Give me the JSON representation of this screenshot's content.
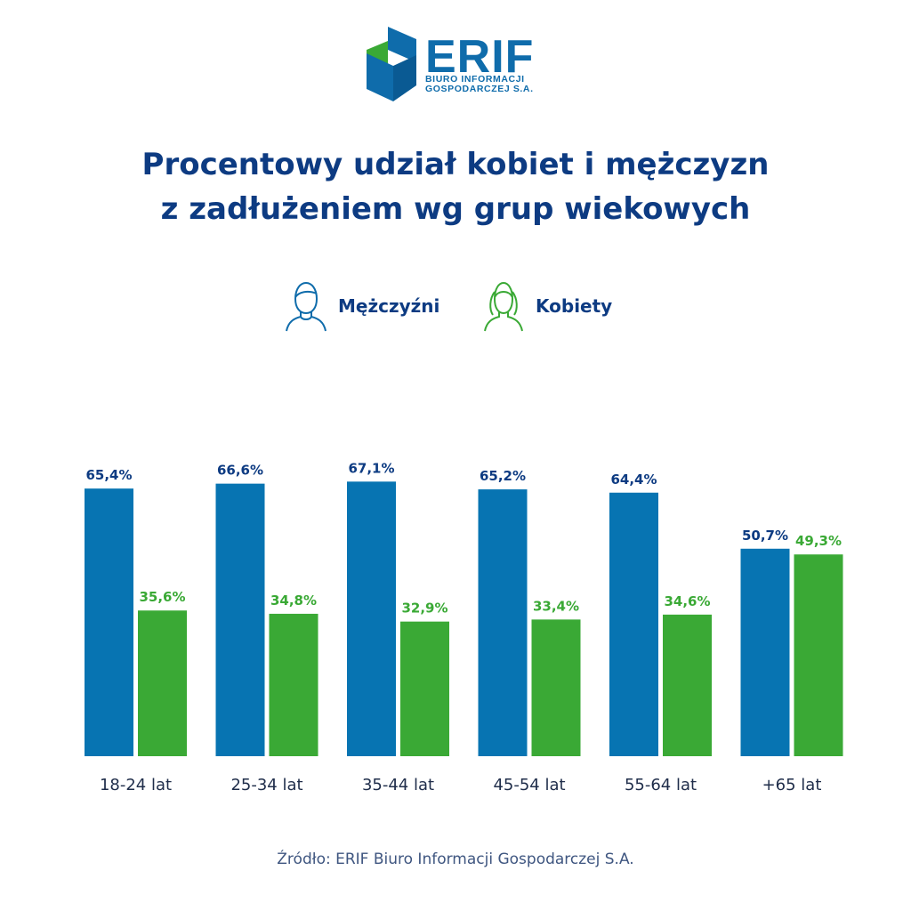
{
  "logo": {
    "name": "ERIF",
    "subtitle_line1": "BIURO INFORMACJI",
    "subtitle_line2": "GOSPODARCZEJ S.A."
  },
  "colors": {
    "men": "#0774b2",
    "women": "#3aa935",
    "men_label": "#0d3b82",
    "women_label": "#3aa935",
    "title": "#0d3b82"
  },
  "legend": {
    "men_label": "Mężczyźni",
    "men_icon": "man-outline-icon",
    "women_label": "Kobiety",
    "women_icon": "woman-outline-icon"
  },
  "chart_data": {
    "type": "bar",
    "title_line1": "Procentowy udział kobiet i mężczyzn",
    "title_line2": "z zadłużeniem wg grup wiekowych",
    "categories": [
      "18-24 lat",
      "25-34 lat",
      "35-44 lat",
      "45-54 lat",
      "55-64 lat",
      "+65 lat"
    ],
    "series": [
      {
        "name": "Mężczyźni",
        "values": [
          65.4,
          66.6,
          67.1,
          65.2,
          64.4,
          50.7
        ],
        "labels": [
          "65,4%",
          "66,6%",
          "67,1%",
          "65,2%",
          "64,4%",
          "50,7%"
        ]
      },
      {
        "name": "Kobiety",
        "values": [
          35.6,
          34.8,
          32.9,
          33.4,
          34.6,
          49.3
        ],
        "labels": [
          "35,6%",
          "34,8%",
          "32,9%",
          "33,4%",
          "34,6%",
          "49,3%"
        ]
      }
    ],
    "ylim": [
      0,
      100
    ],
    "grid": false,
    "legend_position": "top"
  },
  "source": "Źródło: ERIF Biuro Informacji Gospodarczej S.A."
}
